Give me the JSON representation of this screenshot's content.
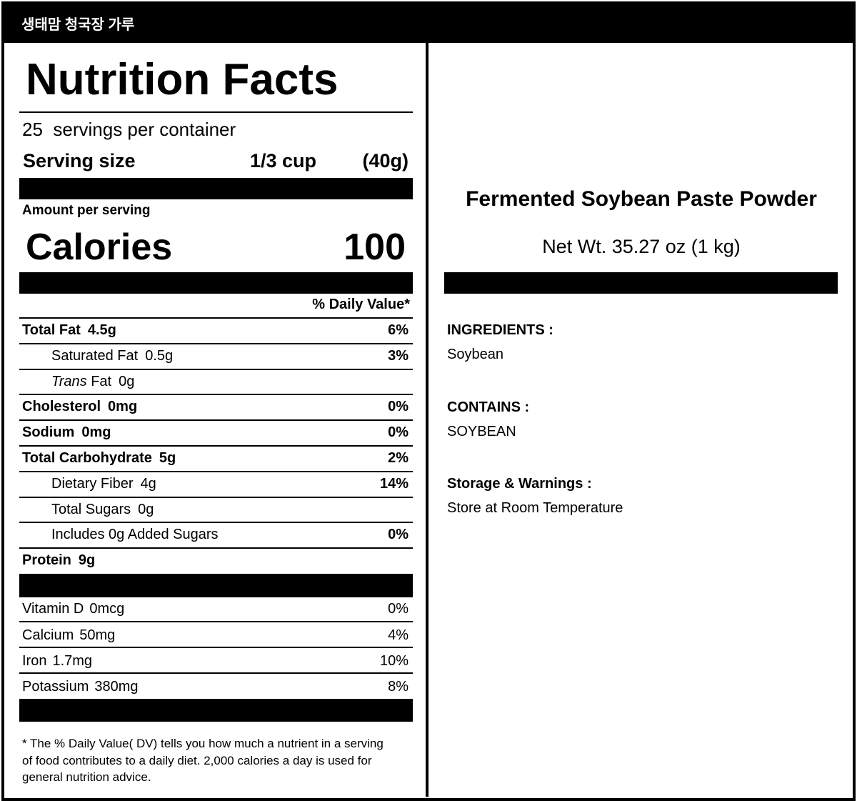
{
  "header": {
    "title": "생태맘 청국장 가루"
  },
  "nutrition": {
    "title": "Nutrition Facts",
    "servings": "25",
    "servings_label": "servings per container",
    "serving_size_label": "Serving size",
    "serving_size": "1/3 cup",
    "serving_weight": "(40g)",
    "amount_label": "Amount per serving",
    "calories_label": "Calories",
    "calories": "100",
    "dv_header": "% Daily Value*",
    "rows": [
      {
        "name": "Total Fat",
        "amount": "4.5g",
        "dv": "6%",
        "bold": true
      },
      {
        "name": "Saturated Fat",
        "amount": "0.5g",
        "dv": "3%",
        "indent": true
      },
      {
        "name_em": "Trans",
        "name": "Fat",
        "amount": "0g",
        "indent": true
      },
      {
        "name": "Cholesterol",
        "amount": "0mg",
        "dv": "0%",
        "bold": true
      },
      {
        "name": "Sodium",
        "amount": "0mg",
        "dv": "0%",
        "bold": true
      },
      {
        "name": "Total Carbohydrate",
        "amount": "5g",
        "dv": "2%",
        "bold": true
      },
      {
        "name": "Dietary Fiber",
        "amount": "4g",
        "dv": "14%",
        "indent": true
      },
      {
        "name": "Total Sugars",
        "amount": "0g",
        "indent": true
      },
      {
        "name": "Includes 0g Added Sugars",
        "dv": "0%",
        "indent": true
      },
      {
        "name": "Protein",
        "amount": "9g",
        "bold": true
      }
    ],
    "vitamins": [
      {
        "name": "Vitamin D",
        "amount": "0mcg",
        "dv": "0%"
      },
      {
        "name": "Calcium",
        "amount": "50mg",
        "dv": "4%"
      },
      {
        "name": "Iron",
        "amount": "1.7mg",
        "dv": "10%"
      },
      {
        "name": "Potassium",
        "amount": "380mg",
        "dv": "8%"
      }
    ],
    "footnote": [
      "* The % Daily Value( DV) tells you how much a nutrient in a serving",
      "of food contributes to a daily diet. 2,000 calories a day is used for",
      "general nutrition advice."
    ]
  },
  "product": {
    "name": "Fermented Soybean Paste Powder",
    "net_weight": "Net Wt. 35.27 oz (1 kg)",
    "sections": [
      {
        "heading": "INGREDIENTS :",
        "text": "Soybean"
      },
      {
        "heading": "CONTAINS :",
        "text": "SOYBEAN"
      },
      {
        "heading": "Storage & Warnings :",
        "text": "Store at Room Temperature"
      }
    ]
  }
}
